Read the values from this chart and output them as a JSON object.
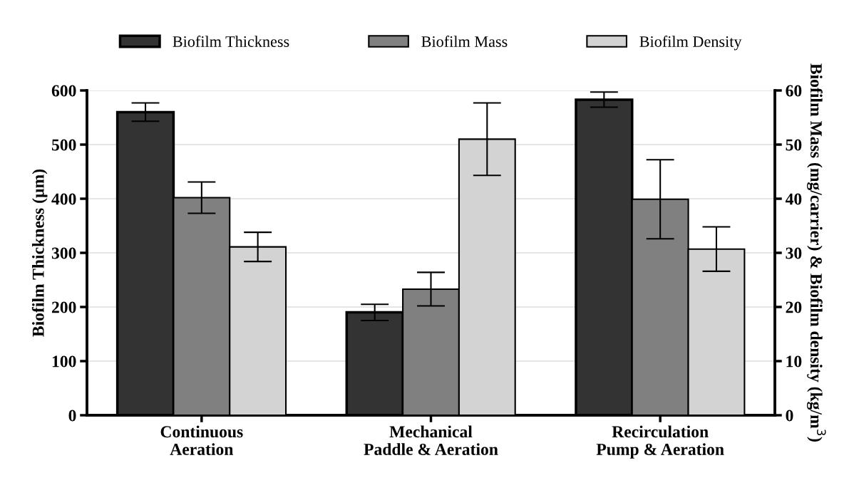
{
  "chart_data": {
    "type": "bar",
    "categories": [
      "Continuous\nAeration",
      "Mechanical\nPaddle & Aeration",
      "Recirculation\nPump & Aeration"
    ],
    "ylabel": "Biofilm Thickness (µm)",
    "y2label": "Biofilm Mass (mg/carrier) & Biofilm density (kg/m$^{3}$)",
    "series": [
      {
        "name": "Biofilm Thickness",
        "color": "#333333",
        "values": [
          560,
          190,
          583
        ],
        "errors": [
          17,
          15,
          14
        ]
      },
      {
        "name": "Biofilm Mass",
        "color": "#808080",
        "values": [
          40.2,
          23.3,
          39.9
        ],
        "errors": [
          2.9,
          3.1,
          7.3
        ],
        "axis": "y2"
      },
      {
        "name": "Biofilm Density",
        "color": "#d3d3d3",
        "values": [
          31.1,
          51.0,
          30.7
        ],
        "errors": [
          2.7,
          6.7,
          4.1
        ],
        "axis": "y2"
      }
    ],
    "ylim": [
      0,
      600
    ],
    "yticks": [
      0,
      100,
      200,
      300,
      400,
      500,
      600
    ],
    "y2lim": [
      0,
      60
    ],
    "y2ticks": [
      0,
      10,
      20,
      30,
      40,
      50,
      60
    ],
    "grid": "y",
    "legend": "top"
  }
}
